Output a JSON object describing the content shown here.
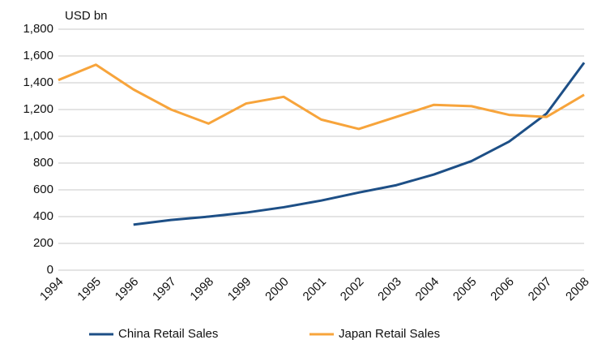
{
  "chart_data": {
    "type": "line",
    "y_axis_label": "USD bn",
    "categories": [
      "1994",
      "1995",
      "1996",
      "1997",
      "1998",
      "1999",
      "2000",
      "2001",
      "2002",
      "2003",
      "2004",
      "2005",
      "2006",
      "2007",
      "2008"
    ],
    "series": [
      {
        "name": "China Retail Sales",
        "color": "#1d4f86",
        "values": [
          null,
          null,
          340,
          375,
          400,
          430,
          470,
          520,
          580,
          635,
          715,
          815,
          960,
          1170,
          1550
        ]
      },
      {
        "name": "Japan Retail Sales",
        "color": "#f7a43b",
        "values": [
          1420,
          1535,
          1350,
          1200,
          1095,
          1245,
          1295,
          1125,
          1055,
          1145,
          1235,
          1225,
          1160,
          1145,
          1310
        ]
      }
    ],
    "ylim": [
      0,
      1800
    ],
    "yticks": [
      0,
      200,
      400,
      600,
      800,
      {
        "value": 1000,
        "label": "1,000"
      },
      {
        "value": 1200,
        "label": "1,200"
      },
      {
        "value": 1400,
        "label": "1,400"
      },
      {
        "value": 1600,
        "label": "1,600"
      },
      {
        "value": 1800,
        "label": "1,800"
      }
    ],
    "grid": true,
    "legend": "bottom"
  }
}
